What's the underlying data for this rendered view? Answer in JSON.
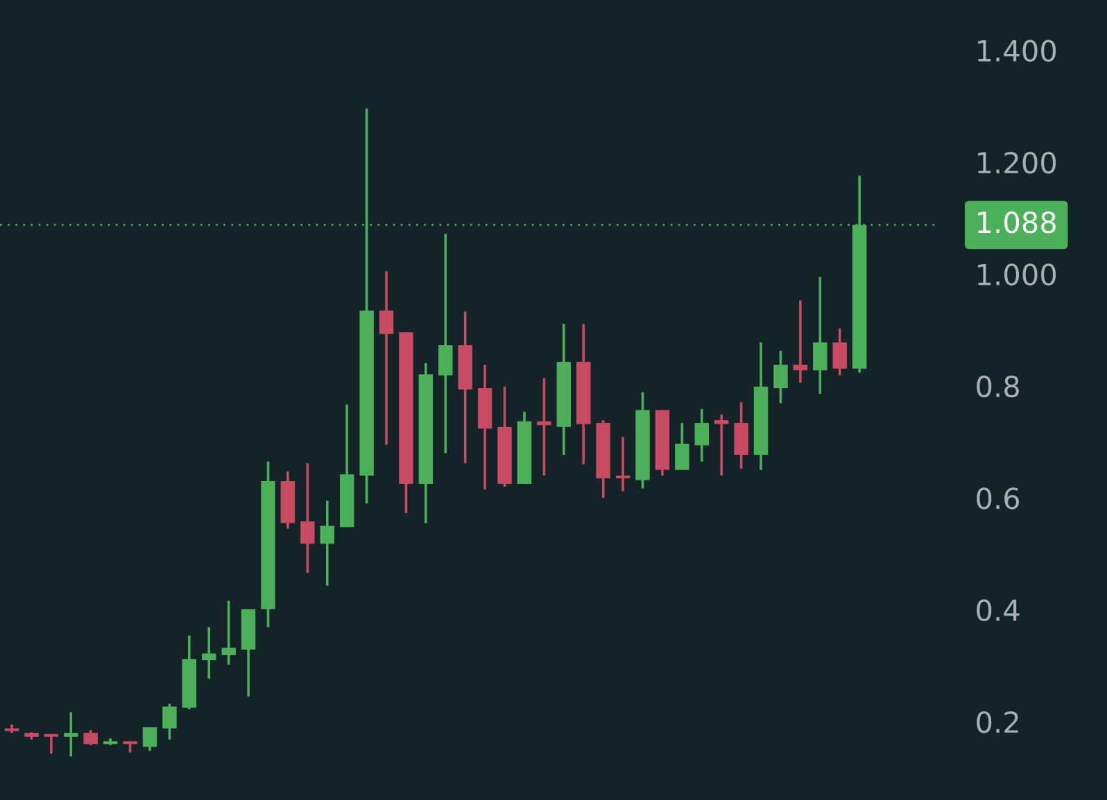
{
  "chart_data": {
    "type": "candlestick",
    "categories": [
      null,
      null,
      null,
      null,
      null,
      null,
      null,
      null,
      null,
      null,
      null,
      null,
      null,
      null,
      null,
      null,
      null,
      null,
      null,
      null,
      null,
      null,
      null,
      null,
      null,
      null,
      null,
      null,
      null,
      null,
      null,
      null,
      null,
      null,
      null,
      null,
      null,
      null,
      null,
      null,
      null,
      null,
      null,
      null
    ],
    "ohlc": [
      [
        0.188,
        0.195,
        0.18,
        0.183
      ],
      [
        0.18,
        0.181,
        0.168,
        0.173
      ],
      [
        0.178,
        0.178,
        0.143,
        0.173
      ],
      [
        0.173,
        0.217,
        0.138,
        0.18
      ],
      [
        0.18,
        0.185,
        0.158,
        0.16
      ],
      [
        0.16,
        0.17,
        0.158,
        0.165
      ],
      [
        0.165,
        0.165,
        0.145,
        0.16
      ],
      [
        0.155,
        0.19,
        0.148,
        0.19
      ],
      [
        0.188,
        0.232,
        0.168,
        0.227
      ],
      [
        0.225,
        0.354,
        0.222,
        0.312
      ],
      [
        0.31,
        0.369,
        0.277,
        0.322
      ],
      [
        0.319,
        0.416,
        0.302,
        0.332
      ],
      [
        0.329,
        0.401,
        0.245,
        0.401
      ],
      [
        0.401,
        0.665,
        0.369,
        0.63
      ],
      [
        0.63,
        0.647,
        0.545,
        0.555
      ],
      [
        0.558,
        0.662,
        0.466,
        0.518
      ],
      [
        0.518,
        0.595,
        0.443,
        0.55
      ],
      [
        0.548,
        0.767,
        0.548,
        0.642
      ],
      [
        0.64,
        1.296,
        0.59,
        0.935
      ],
      [
        0.935,
        1.005,
        0.695,
        0.893
      ],
      [
        0.896,
        0.896,
        0.573,
        0.625
      ],
      [
        0.625,
        0.841,
        0.555,
        0.821
      ],
      [
        0.819,
        1.072,
        0.68,
        0.873
      ],
      [
        0.873,
        0.933,
        0.662,
        0.794
      ],
      [
        0.796,
        0.838,
        0.615,
        0.724
      ],
      [
        0.727,
        0.799,
        0.62,
        0.625
      ],
      [
        0.625,
        0.754,
        0.625,
        0.737
      ],
      [
        0.737,
        0.814,
        0.64,
        0.73
      ],
      [
        0.727,
        0.911,
        0.677,
        0.843
      ],
      [
        0.843,
        0.911,
        0.66,
        0.732
      ],
      [
        0.734,
        0.739,
        0.6,
        0.635
      ],
      [
        0.64,
        0.709,
        0.612,
        0.635
      ],
      [
        0.632,
        0.789,
        0.617,
        0.757
      ],
      [
        0.757,
        0.757,
        0.64,
        0.65
      ],
      [
        0.65,
        0.734,
        0.65,
        0.697
      ],
      [
        0.694,
        0.759,
        0.665,
        0.734
      ],
      [
        0.739,
        0.749,
        0.64,
        0.732
      ],
      [
        0.734,
        0.771,
        0.652,
        0.677
      ],
      [
        0.677,
        0.878,
        0.65,
        0.799
      ],
      [
        0.796,
        0.863,
        0.769,
        0.838
      ],
      [
        0.838,
        0.953,
        0.806,
        0.828
      ],
      [
        0.828,
        0.995,
        0.786,
        0.878
      ],
      [
        0.878,
        0.903,
        0.819,
        0.831
      ],
      [
        0.831,
        1.176,
        0.824,
        1.088
      ]
    ],
    "colors": [
      "#c94a63",
      "#c94a63",
      "#c94a63",
      "#4caf5a",
      "#c94a63",
      "#4caf5a",
      "#c94a63",
      "#4caf5a",
      "#4caf5a",
      "#4caf5a",
      "#4caf5a",
      "#4caf5a",
      "#4caf5a",
      "#4caf5a",
      "#c94a63",
      "#c94a63",
      "#4caf5a",
      "#4caf5a",
      "#4caf5a",
      "#c94a63",
      "#c94a63",
      "#4caf5a",
      "#4caf5a",
      "#c94a63",
      "#c94a63",
      "#c94a63",
      "#4caf5a",
      "#c94a63",
      "#4caf5a",
      "#c94a63",
      "#c94a63",
      "#c94a63",
      "#4caf5a",
      "#c94a63",
      "#4caf5a",
      "#4caf5a",
      "#c94a63",
      "#c94a63",
      "#4caf5a",
      "#4caf5a",
      "#c94a63",
      "#4caf5a",
      "#c94a63",
      "#4caf5a"
    ],
    "ylim": [
      0.06,
      1.49
    ],
    "yticks": [
      {
        "value": 0.2,
        "label": "0.2"
      },
      {
        "value": 0.4,
        "label": "0.4"
      },
      {
        "value": 0.6,
        "label": "0.6"
      },
      {
        "value": 0.8,
        "label": "0.8"
      },
      {
        "value": 1.0,
        "label": "1.000"
      },
      {
        "value": 1.2,
        "label": "1.200"
      },
      {
        "value": 1.4,
        "label": "1.400"
      }
    ],
    "tick_labels": "y",
    "grid": false,
    "ref_lines": [
      {
        "axis": "y",
        "value": 1.088,
        "label": "1.088",
        "color": "#4caf5a",
        "line_style": "dotted"
      }
    ]
  }
}
